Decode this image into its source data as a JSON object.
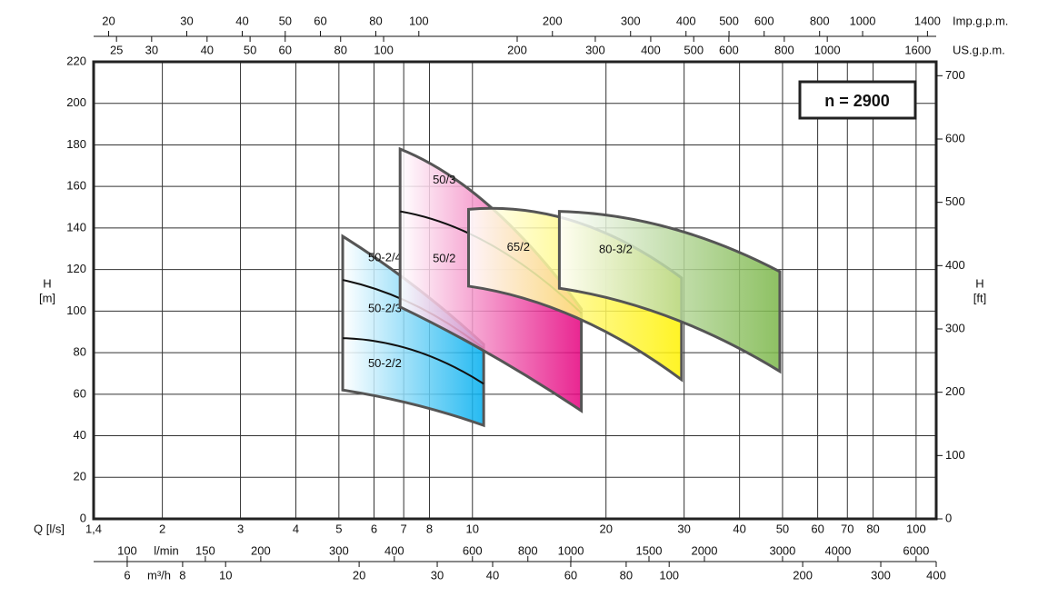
{
  "chart_data": {
    "type": "region",
    "speed_label": "n = 2900",
    "x_label": "Q [l/s]",
    "y_label": [
      "H",
      "[m]"
    ],
    "y2_label": [
      "H",
      "[ft]"
    ],
    "xscale": "log",
    "grid": true,
    "xlim": [
      1.4,
      111
    ],
    "xticks": [
      {
        "value": 1.4,
        "label": "1,4"
      },
      2,
      3,
      4,
      5,
      6,
      7,
      8,
      10,
      20,
      30,
      40,
      50,
      60,
      70,
      80,
      100
    ],
    "ylim": [
      0,
      220
    ],
    "yticks": [
      0,
      20,
      40,
      60,
      80,
      100,
      120,
      140,
      160,
      180,
      200,
      220
    ],
    "y2lim": [
      0,
      722
    ],
    "y2ticks": [
      0,
      100,
      200,
      300,
      400,
      500,
      600,
      700
    ],
    "secondary_x_axes": [
      {
        "label": "Imp.g.p.m.",
        "lim": [
          18.5,
          1465
        ],
        "ticks": [
          20,
          30,
          40,
          50,
          60,
          80,
          100,
          200,
          300,
          400,
          500,
          600,
          800,
          1000,
          1400
        ]
      },
      {
        "label": "US.g.p.m.",
        "lim": [
          22.2,
          1760
        ],
        "ticks": [
          25,
          30,
          40,
          50,
          60,
          80,
          100,
          200,
          300,
          400,
          500,
          600,
          800,
          1000,
          1600
        ]
      },
      {
        "label": "l/min",
        "lim": [
          84,
          6660
        ],
        "ticks": [
          100,
          150,
          200,
          300,
          400,
          600,
          800,
          1000,
          1500,
          2000,
          3000,
          4000,
          6000
        ]
      },
      {
        "label": "m³/h",
        "lim": [
          5.04,
          400
        ],
        "ticks": [
          6,
          8,
          10,
          20,
          30,
          40,
          60,
          80,
          100,
          200,
          300,
          400
        ]
      }
    ],
    "fields": [
      {
        "color": "#00aeef",
        "x": [
          5.1,
          7.4,
          10.6
        ],
        "top": [
          136,
          112,
          84
        ],
        "bottom": [
          62,
          55,
          45
        ],
        "curves": [
          [
            115,
            103,
            82
          ],
          [
            87,
            81,
            65
          ]
        ],
        "bands": [
          "50-2/4",
          "50-2/3",
          "50-2/2"
        ]
      },
      {
        "color": "#e5007e",
        "x": [
          6.87,
          11.0,
          17.6
        ],
        "top": [
          178,
          150,
          101
        ],
        "bottom": [
          102,
          79,
          52
        ],
        "curves": [
          [
            148,
            132,
            99
          ]
        ],
        "bands": [
          "50/3",
          "50/2"
        ]
      },
      {
        "color": "#fff200",
        "x": [
          9.8,
          17.1,
          29.6
        ],
        "top": [
          149,
          143,
          116
        ],
        "bottom": [
          112,
          97,
          67
        ],
        "curves": [],
        "bands": [
          "65/2"
        ]
      },
      {
        "color": "#7ab648",
        "x": [
          15.7,
          27.9,
          49.3
        ],
        "top": [
          148,
          140,
          119
        ],
        "bottom": [
          111,
          97,
          71
        ],
        "curves": [],
        "bands": [
          "80-3/2"
        ]
      }
    ]
  }
}
